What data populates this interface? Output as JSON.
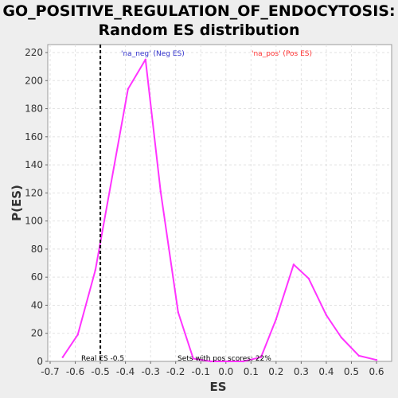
{
  "chart_data": {
    "type": "line",
    "title_line1": "GO_POSITIVE_REGULATION_OF_ENDOCYTOSIS:",
    "title_line2": "Random ES distribution",
    "xlabel": "ES",
    "ylabel": "P(ES)",
    "xlim": [
      -0.7,
      0.6
    ],
    "ylim": [
      0,
      225
    ],
    "xticks": [
      -0.7,
      -0.6,
      -0.5,
      -0.4,
      -0.3,
      -0.2,
      -0.1,
      0.0,
      0.1,
      0.2,
      0.3,
      0.4,
      0.5,
      0.6
    ],
    "xtick_labels": [
      "-0.7",
      "-0.6",
      "-0.5",
      "-0.4",
      "-0.3",
      "-0.2",
      "-0.1",
      "0.0",
      "0.1",
      "0.2",
      "0.3",
      "0.4",
      "0.5",
      "0.6"
    ],
    "yticks": [
      0,
      20,
      40,
      60,
      80,
      100,
      120,
      140,
      160,
      180,
      200,
      220
    ],
    "ytick_labels": [
      "0",
      "20",
      "40",
      "60",
      "80",
      "100",
      "120",
      "140",
      "160",
      "180",
      "200",
      "220"
    ],
    "grid": true,
    "series": [
      {
        "color": "#ff33ff",
        "x": [
          -0.65,
          -0.59,
          -0.52,
          -0.39,
          -0.32,
          -0.26,
          -0.19,
          -0.13,
          -0.06,
          0.01,
          0.07,
          0.14,
          0.2,
          0.27,
          0.33,
          0.4,
          0.46,
          0.53,
          0.6
        ],
        "y": [
          3,
          19,
          65,
          194,
          215,
          121,
          35,
          2,
          0,
          0,
          0,
          3,
          30,
          69,
          59,
          33,
          17,
          4,
          1
        ]
      }
    ],
    "real_es_line": {
      "x": -0.5,
      "color": "#000000",
      "style": "dashed"
    },
    "annotations": {
      "neg_label": "'na_neg' (Neg ES)",
      "neg_color": "#3333cc",
      "pos_label": "'na_pos' (Pos ES)",
      "pos_color": "#ff3333",
      "real_es": "Real ES -0.5",
      "sets_pos": "Sets with pos scores: 22%"
    }
  }
}
